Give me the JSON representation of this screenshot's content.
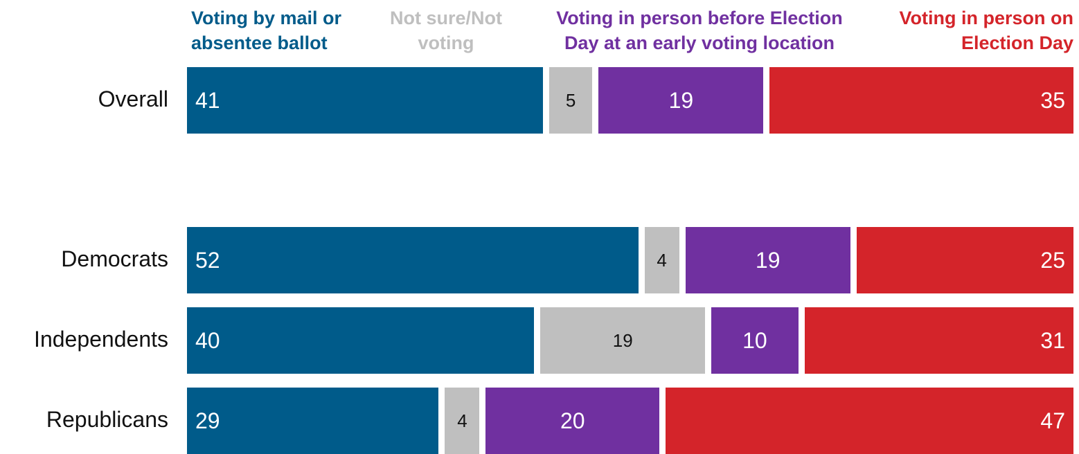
{
  "chart_data": {
    "type": "bar",
    "orientation": "horizontal",
    "stacked": true,
    "categories": [
      "Overall",
      "Democrats",
      "Independents",
      "Republicans"
    ],
    "series": [
      {
        "name": "Voting by mail or absentee ballot",
        "color": "#005b8a",
        "values": [
          41,
          52,
          40,
          29
        ]
      },
      {
        "name": "Not sure/Not voting",
        "color": "#bfbfbf",
        "values": [
          5,
          4,
          19,
          4
        ]
      },
      {
        "name": "Voting in person before Election Day at an early voting location",
        "color": "#7030a0",
        "values": [
          19,
          19,
          10,
          20
        ]
      },
      {
        "name": "Voting in person on Election Day",
        "color": "#d4242a",
        "values": [
          35,
          25,
          31,
          47
        ]
      }
    ],
    "legend_labels": [
      [
        "Voting by mail or",
        "absentee ballot"
      ],
      [
        "Not sure/Not",
        "voting"
      ],
      [
        "Voting in person before Election",
        "Day at an early voting location"
      ],
      [
        "Voting in person on",
        "Election Day"
      ]
    ],
    "legend_position": "top",
    "xlim": [
      0,
      100
    ],
    "title": "",
    "xlabel": "",
    "ylabel": ""
  }
}
